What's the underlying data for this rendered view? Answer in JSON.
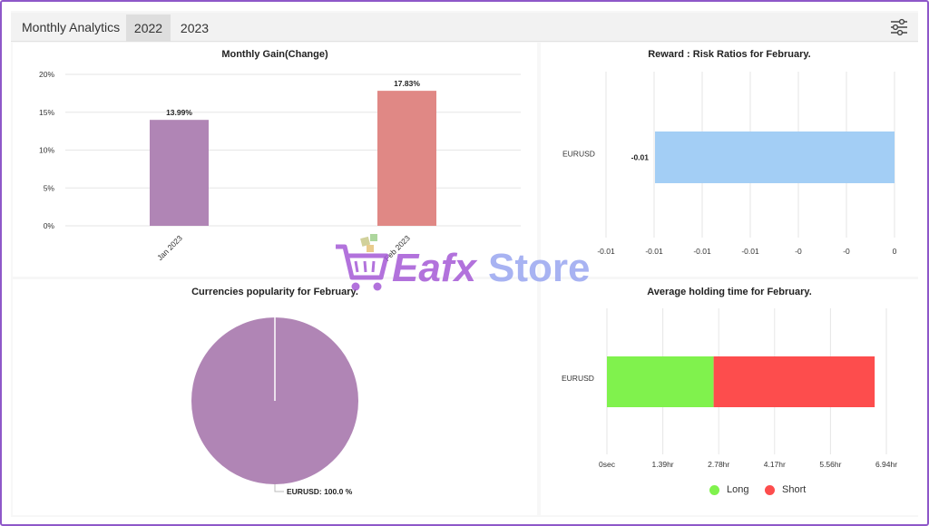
{
  "header": {
    "title": "Monthly Analytics",
    "tabs": [
      {
        "label": "2022",
        "active": true
      },
      {
        "label": "2023",
        "active": false
      }
    ]
  },
  "watermark": {
    "text_part1": "Eafx",
    "text_part2": "Store"
  },
  "gain_chart": {
    "chart_data": {
      "type": "bar",
      "title": "Monthly Gain(Change)",
      "categories": [
        "Jan 2023",
        "Feb 2023"
      ],
      "values": [
        13.99,
        17.83
      ],
      "data_labels": [
        "13.99%",
        "17.83%"
      ],
      "colors": [
        "#b085b5",
        "#e08885"
      ],
      "ylim": [
        0,
        20
      ],
      "yticks": [
        "0%",
        "5%",
        "10%",
        "15%",
        "20%"
      ]
    }
  },
  "ratio_chart": {
    "chart_data": {
      "type": "bar",
      "orientation": "horizontal",
      "title": "Reward : Risk Ratios for February.",
      "categories": [
        "EURUSD"
      ],
      "values": [
        -0.01
      ],
      "data_labels": [
        "-0.01"
      ],
      "colors": [
        "#a3cef5"
      ],
      "xticks": [
        "-0.01",
        "-0.01",
        "-0.01",
        "-0.01",
        "-0",
        "-0",
        "0"
      ]
    }
  },
  "pie_chart": {
    "chart_data": {
      "type": "pie",
      "title": "Currencies popularity for February.",
      "slices": [
        {
          "label": "EURUSD: 100.0 %",
          "value": 100.0
        }
      ],
      "colors": [
        "#b085b5"
      ]
    }
  },
  "holding_chart": {
    "chart_data": {
      "type": "bar",
      "orientation": "horizontal",
      "stacked": true,
      "title": "Average holding time for February.",
      "categories": [
        "EURUSD"
      ],
      "series": [
        {
          "name": "Long",
          "values": [
            2.65
          ],
          "color": "#80f24d"
        },
        {
          "name": "Short",
          "values": [
            4.0
          ],
          "color": "#fd4d4d"
        }
      ],
      "xlim": [
        0,
        6.94
      ],
      "xticks": [
        "0sec",
        "1.39hr",
        "2.78hr",
        "4.17hr",
        "5.56hr",
        "6.94hr"
      ],
      "legend_position": "bottom"
    }
  }
}
